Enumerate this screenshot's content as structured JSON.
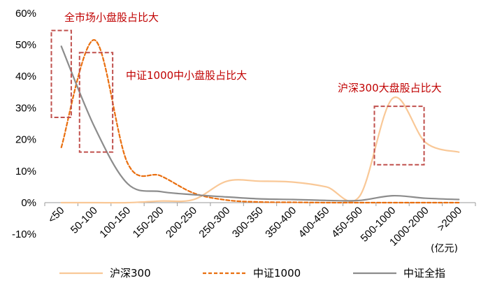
{
  "chart_data": {
    "type": "line",
    "categories": [
      "<50",
      "50-100",
      "100-150",
      "150-200",
      "200-250",
      "250-300",
      "300-350",
      "350-400",
      "400-450",
      "450-500",
      "500-1000",
      "1000-2000",
      ">2000"
    ],
    "unit_label": "(亿元)",
    "ylim": [
      -10,
      60
    ],
    "yticks": [
      -10,
      0,
      10,
      20,
      30,
      40,
      50,
      60
    ],
    "ytick_labels": [
      "-10%",
      "0%",
      "10%",
      "20%",
      "30%",
      "40%",
      "50%",
      "60%"
    ],
    "grid": false,
    "legend_position": "bottom",
    "series": [
      {
        "name": "沪深300",
        "color": "#f9c897",
        "dash": "solid",
        "values": [
          0,
          0,
          0,
          0.5,
          1,
          6.8,
          6.8,
          6.5,
          5,
          2,
          33,
          19,
          16
        ]
      },
      {
        "name": "中证1000",
        "color": "#e96f10",
        "dash": "dashed",
        "values": [
          17.5,
          51.5,
          12.5,
          8.5,
          3,
          0.8,
          0.2,
          0.1,
          0,
          0,
          0,
          0,
          0
        ]
      },
      {
        "name": "中证全指",
        "color": "#8c8c8c",
        "dash": "solid",
        "values": [
          49.5,
          24,
          6,
          3.5,
          2.5,
          1.8,
          1.2,
          1,
          0.7,
          0.7,
          2.2,
          1.4,
          1
        ]
      }
    ],
    "annotations": [
      {
        "text": "全市场小盘股占比大",
        "box_x": [
          -0.3,
          0.3
        ],
        "box_y": [
          27,
          54.5
        ]
      },
      {
        "text": "中证1000中小盘股占比大",
        "box_x": [
          0.55,
          1.55
        ],
        "box_y": [
          16,
          47.5
        ]
      },
      {
        "text": "沪深300大盘股占比大",
        "box_x": [
          9.45,
          10.95
        ],
        "box_y": [
          12,
          30.5
        ]
      }
    ]
  }
}
